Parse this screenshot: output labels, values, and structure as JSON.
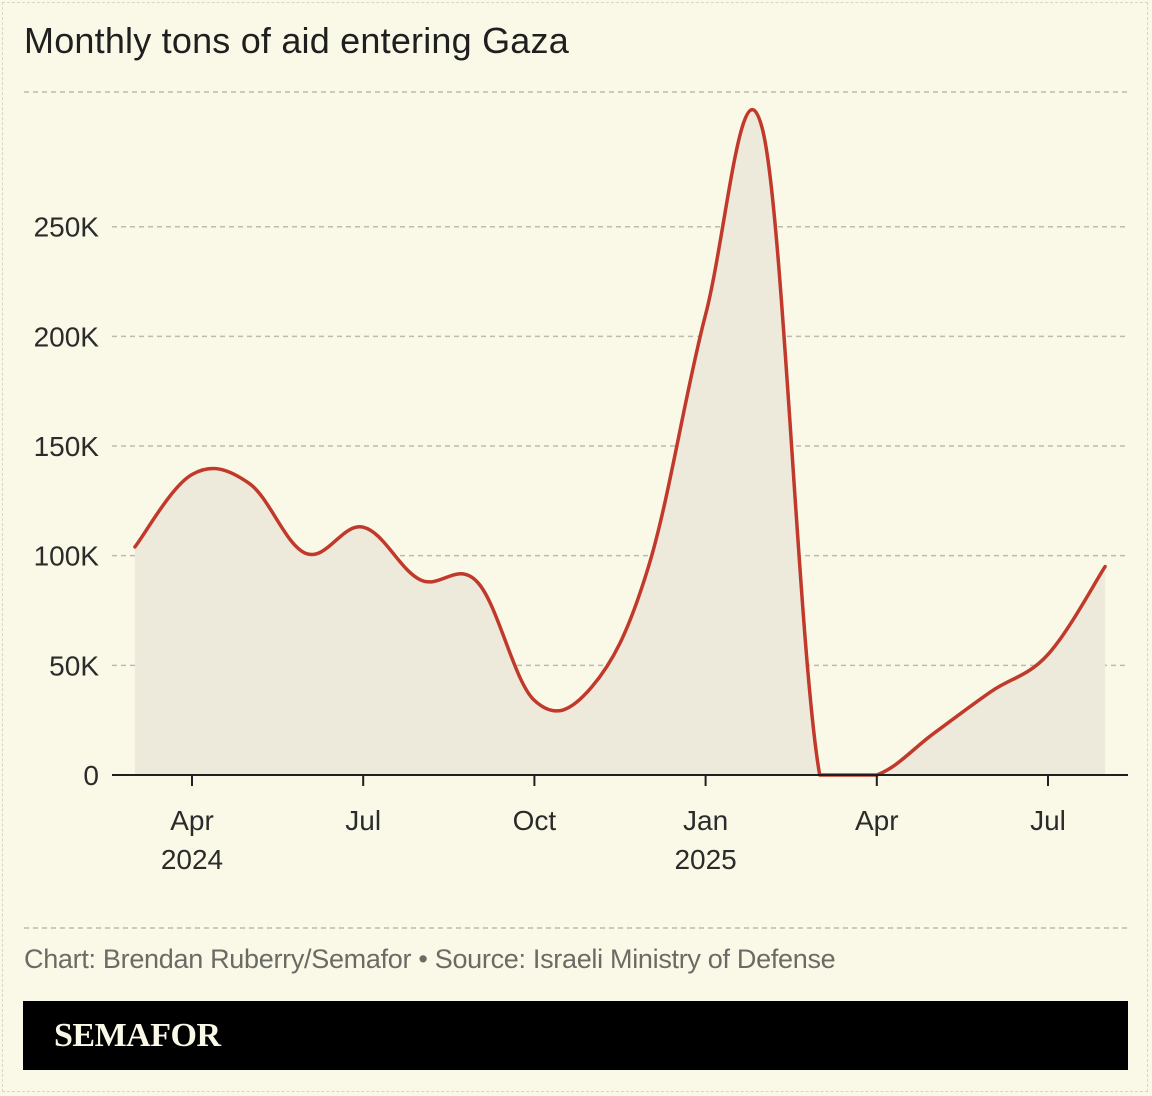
{
  "title": "Monthly tons of aid entering Gaza",
  "source": "Chart: Brendan Ruberry/Semafor • Source: Israeli Ministry of Defense",
  "brand": "SEMAFOR",
  "colors": {
    "background": "#faf8e6",
    "line": "#c0392b",
    "area": "#edeadc",
    "grid": "#bdbbae",
    "axis": "#1f1f1f"
  },
  "chart_data": {
    "type": "area",
    "title": "Monthly tons of aid entering Gaza",
    "xlabel": "",
    "ylabel": "",
    "ylim": [
      0,
      295000
    ],
    "yticks": [
      {
        "value": 0,
        "label": "0"
      },
      {
        "value": 50000,
        "label": "50K"
      },
      {
        "value": 100000,
        "label": "100K"
      },
      {
        "value": 150000,
        "label": "150K"
      },
      {
        "value": 200000,
        "label": "200K"
      },
      {
        "value": 250000,
        "label": "250K"
      }
    ],
    "xticks": [
      {
        "month": 2.0,
        "label": "Apr",
        "label2": "2024"
      },
      {
        "month": 5.0,
        "label": "Jul",
        "label2": ""
      },
      {
        "month": 8.0,
        "label": "Oct",
        "label2": ""
      },
      {
        "month": 11.0,
        "label": "Jan",
        "label2": "2025"
      },
      {
        "month": 14.0,
        "label": "Apr",
        "label2": ""
      },
      {
        "month": 17.0,
        "label": "Jul",
        "label2": ""
      }
    ],
    "xlim": [
      0.6,
      18.0
    ],
    "series": [
      {
        "name": "Monthly tons of aid",
        "points": [
          {
            "month": 1.0,
            "value": 104000
          },
          {
            "month": 2.0,
            "value": 137000
          },
          {
            "month": 3.0,
            "value": 133000
          },
          {
            "month": 4.0,
            "value": 101000
          },
          {
            "month": 5.0,
            "value": 113000
          },
          {
            "month": 6.0,
            "value": 89000
          },
          {
            "month": 7.0,
            "value": 88000
          },
          {
            "month": 8.0,
            "value": 34000
          },
          {
            "month": 9.0,
            "value": 40000
          },
          {
            "month": 10.0,
            "value": 95000
          },
          {
            "month": 11.0,
            "value": 210000
          },
          {
            "month": 12.0,
            "value": 294000
          },
          {
            "month": 13.0,
            "value": 0
          },
          {
            "month": 14.0,
            "value": 0
          },
          {
            "month": 15.0,
            "value": 19000
          },
          {
            "month": 16.0,
            "value": 38000
          },
          {
            "month": 17.0,
            "value": 55000
          },
          {
            "month": 18.0,
            "value": 95000
          }
        ]
      }
    ]
  }
}
